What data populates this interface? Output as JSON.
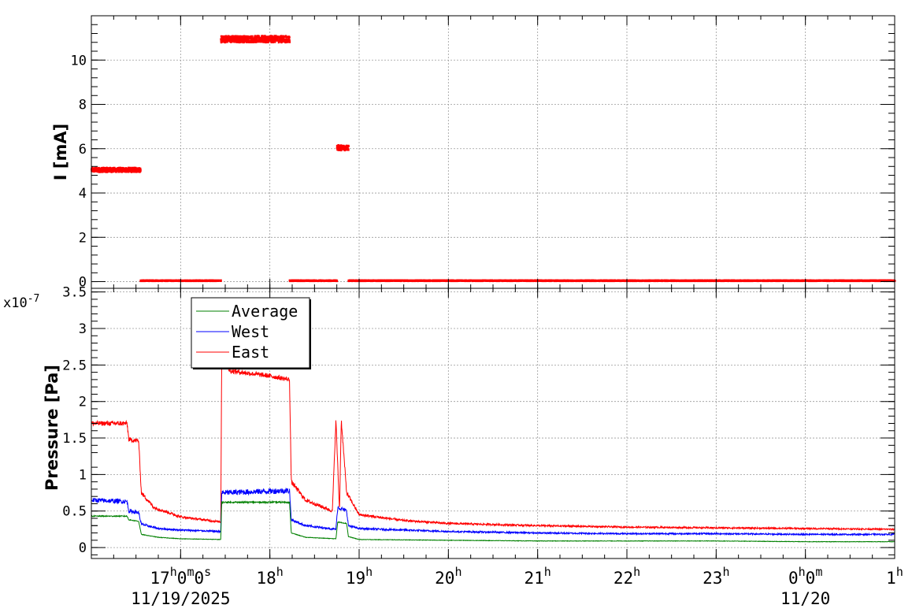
{
  "chart_data": [
    {
      "type": "scatter",
      "id": "current",
      "ylabel": "I [mA]",
      "ylim": [
        -0.3,
        12
      ],
      "yticks": [
        0,
        2,
        4,
        6,
        8,
        10
      ],
      "ytick_labels": [
        "0",
        "2",
        "4",
        "6",
        "8",
        "10"
      ],
      "xlim": [
        16.0,
        25.0
      ],
      "grid": true,
      "series": [
        {
          "color": "#ff0000",
          "segments": [
            {
              "x": [
                16.0,
                16.55
              ],
              "y": 5.0,
              "noise": 0.1
            },
            {
              "x": [
                16.55,
                17.45
              ],
              "y": 0.0,
              "noise": 0.02
            },
            {
              "x": [
                17.45,
                18.22
              ],
              "y": 10.9,
              "noise": 0.15
            },
            {
              "x": [
                18.22,
                18.75
              ],
              "y": 0.0,
              "noise": 0.02
            },
            {
              "x": [
                18.75,
                18.88
              ],
              "y": 6.0,
              "noise": 0.12
            },
            {
              "x": [
                18.88,
                25.0
              ],
              "y": 0.0,
              "noise": 0.02
            }
          ]
        }
      ]
    },
    {
      "type": "line",
      "id": "pressure",
      "ylabel": "Pressure [Pa]",
      "yexponent": "x10",
      "yexponent_power": "-7",
      "ylim": [
        -0.15,
        3.55
      ],
      "yticks": [
        0,
        0.5,
        1,
        1.5,
        2,
        2.5,
        3,
        3.5
      ],
      "ytick_labels": [
        "0",
        "0.5",
        "1",
        "1.5",
        "2",
        "2.5",
        "3",
        "3.5"
      ],
      "xlim": [
        16.0,
        25.0
      ],
      "xticks": [
        {
          "x": 17.0,
          "top": "17",
          "top_sup": "h",
          "top2": "0",
          "top2_sup": "m",
          "top3": "0",
          "top3_sup": "s",
          "bottom": "11/19/2025"
        },
        {
          "x": 18.0,
          "top": "18",
          "top_sup": "h"
        },
        {
          "x": 19.0,
          "top": "19",
          "top_sup": "h"
        },
        {
          "x": 20.0,
          "top": "20",
          "top_sup": "h"
        },
        {
          "x": 21.0,
          "top": "21",
          "top_sup": "h"
        },
        {
          "x": 22.0,
          "top": "22",
          "top_sup": "h"
        },
        {
          "x": 23.0,
          "top": "23",
          "top_sup": "h"
        },
        {
          "x": 24.0,
          "top": "0",
          "top_sup": "h",
          "top2": "0",
          "top2_sup": "m",
          "bottom": "11/20"
        },
        {
          "x": 25.0,
          "top": "1",
          "top_sup": "h"
        }
      ],
      "grid": true,
      "legend": {
        "placement": "top-left",
        "entries": [
          {
            "label": "Average",
            "color": "#008000"
          },
          {
            "label": "West",
            "color": "#0000ff"
          },
          {
            "label": "East",
            "color": "#ff0000"
          }
        ]
      },
      "series": [
        {
          "name": "East",
          "color": "#ff0000",
          "noise": 0.02,
          "points": [
            [
              16.0,
              1.7
            ],
            [
              16.4,
              1.7
            ],
            [
              16.42,
              1.48
            ],
            [
              16.53,
              1.46
            ],
            [
              16.56,
              0.75
            ],
            [
              16.7,
              0.55
            ],
            [
              17.0,
              0.42
            ],
            [
              17.45,
              0.35
            ],
            [
              17.46,
              2.6
            ],
            [
              17.55,
              2.42
            ],
            [
              18.0,
              2.35
            ],
            [
              18.22,
              2.3
            ],
            [
              18.24,
              0.9
            ],
            [
              18.4,
              0.65
            ],
            [
              18.7,
              0.5
            ],
            [
              18.74,
              1.75
            ],
            [
              18.78,
              0.5
            ],
            [
              18.8,
              1.75
            ],
            [
              18.86,
              0.75
            ],
            [
              19.0,
              0.45
            ],
            [
              19.5,
              0.37
            ],
            [
              20.0,
              0.33
            ],
            [
              21.0,
              0.3
            ],
            [
              22.0,
              0.28
            ],
            [
              23.0,
              0.27
            ],
            [
              24.0,
              0.26
            ],
            [
              25.0,
              0.25
            ]
          ]
        },
        {
          "name": "West",
          "color": "#0000ff",
          "noise": 0.025,
          "points": [
            [
              16.0,
              0.65
            ],
            [
              16.4,
              0.63
            ],
            [
              16.42,
              0.5
            ],
            [
              16.53,
              0.48
            ],
            [
              16.56,
              0.32
            ],
            [
              16.75,
              0.26
            ],
            [
              17.0,
              0.24
            ],
            [
              17.45,
              0.22
            ],
            [
              17.46,
              0.75
            ],
            [
              18.22,
              0.78
            ],
            [
              18.24,
              0.38
            ],
            [
              18.4,
              0.3
            ],
            [
              18.74,
              0.25
            ],
            [
              18.76,
              0.55
            ],
            [
              18.86,
              0.5
            ],
            [
              18.88,
              0.3
            ],
            [
              19.0,
              0.26
            ],
            [
              20.0,
              0.22
            ],
            [
              21.0,
              0.2
            ],
            [
              22.0,
              0.19
            ],
            [
              23.0,
              0.19
            ],
            [
              24.0,
              0.18
            ],
            [
              25.0,
              0.18
            ]
          ]
        },
        {
          "name": "Average",
          "color": "#008000",
          "noise": 0.008,
          "points": [
            [
              16.0,
              0.43
            ],
            [
              16.4,
              0.43
            ],
            [
              16.42,
              0.38
            ],
            [
              16.53,
              0.36
            ],
            [
              16.56,
              0.18
            ],
            [
              16.75,
              0.14
            ],
            [
              17.0,
              0.12
            ],
            [
              17.45,
              0.11
            ],
            [
              17.46,
              0.62
            ],
            [
              18.22,
              0.62
            ],
            [
              18.24,
              0.2
            ],
            [
              18.4,
              0.14
            ],
            [
              18.74,
              0.12
            ],
            [
              18.76,
              0.35
            ],
            [
              18.86,
              0.33
            ],
            [
              18.88,
              0.15
            ],
            [
              19.0,
              0.11
            ],
            [
              20.0,
              0.1
            ],
            [
              21.0,
              0.09
            ],
            [
              22.0,
              0.09
            ],
            [
              23.0,
              0.09
            ],
            [
              24.0,
              0.08
            ],
            [
              25.0,
              0.08
            ]
          ]
        }
      ]
    }
  ]
}
